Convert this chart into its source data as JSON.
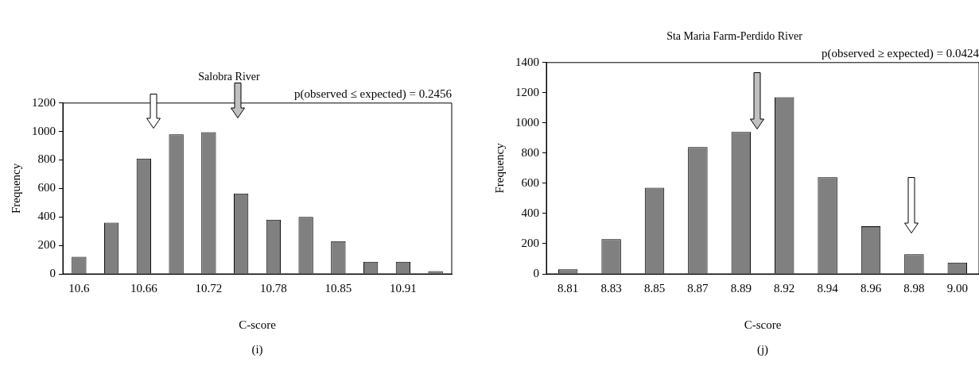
{
  "chart_data": [
    {
      "type": "bar",
      "title": "Salobra River",
      "xlabel": "C-score",
      "ylabel": "Frequency",
      "categories": [
        "10.6",
        null,
        "10.66",
        null,
        "10.72",
        null,
        "10.78",
        null,
        "10.85",
        null,
        "10.91",
        null
      ],
      "values": [
        120,
        360,
        810,
        980,
        995,
        565,
        380,
        400,
        230,
        85,
        85,
        20
      ],
      "color": "#808080",
      "ylim": [
        0,
        1200
      ],
      "yticks": [
        0,
        200,
        400,
        600,
        800,
        1000,
        1200
      ],
      "grid": false,
      "legend": false,
      "annotations": [
        "p(observed ≤ expected) = 0.2456",
        "(i)"
      ]
    },
    {
      "type": "bar",
      "title": "Sta Maria Farm-Perdido River",
      "xlabel": "C-score",
      "ylabel": "Frequency",
      "categories": [
        "8.81",
        "8.83",
        "8.85",
        "8.87",
        "8.89",
        "8.92",
        "8.94",
        "8.96",
        "8.98",
        "9.00"
      ],
      "values": [
        30,
        230,
        570,
        840,
        940,
        1170,
        640,
        315,
        130,
        75
      ],
      "color": "#808080",
      "ylim": [
        0,
        1400
      ],
      "yticks": [
        0,
        200,
        400,
        600,
        800,
        1000,
        1200,
        1400
      ],
      "grid": false,
      "legend": false,
      "annotations": [
        "p(observed ≥ expected) = 0.0424",
        "(j)"
      ]
    }
  ]
}
